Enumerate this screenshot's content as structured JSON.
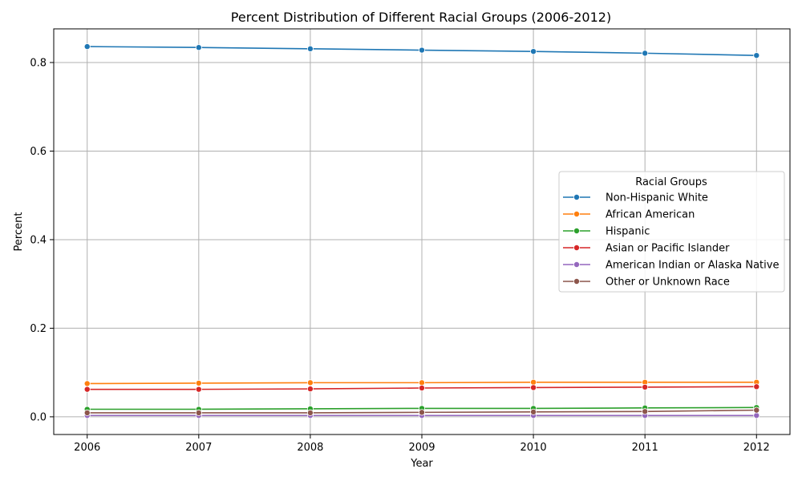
{
  "chart_data": {
    "type": "line",
    "title": "Percent Distribution of Different Racial Groups (2006-2012)",
    "xlabel": "Year",
    "ylabel": "Percent",
    "x": [
      2006,
      2007,
      2008,
      2009,
      2010,
      2011,
      2012
    ],
    "x_ticks": [
      "2006",
      "2007",
      "2008",
      "2009",
      "2010",
      "2011",
      "2012"
    ],
    "xlim": [
      2005.7,
      2012.3
    ],
    "ylim": [
      -0.04,
      0.876
    ],
    "y_ticks": [
      0.0,
      0.2,
      0.4,
      0.6,
      0.8
    ],
    "y_tick_labels": [
      "0.0",
      "0.2",
      "0.4",
      "0.6",
      "0.8"
    ],
    "grid": true,
    "legend": {
      "title": "Racial Groups",
      "placement": "center-right"
    },
    "series": [
      {
        "name": "Non-Hispanic White",
        "color": "#1f77b4",
        "values": [
          0.836,
          0.834,
          0.831,
          0.828,
          0.825,
          0.821,
          0.816
        ]
      },
      {
        "name": "African American",
        "color": "#ff7f0e",
        "values": [
          0.075,
          0.076,
          0.077,
          0.077,
          0.078,
          0.078,
          0.078
        ]
      },
      {
        "name": "Hispanic",
        "color": "#2ca02c",
        "values": [
          0.017,
          0.017,
          0.018,
          0.019,
          0.019,
          0.02,
          0.021
        ]
      },
      {
        "name": "Asian or Pacific Islander",
        "color": "#d62728",
        "values": [
          0.062,
          0.062,
          0.063,
          0.065,
          0.066,
          0.067,
          0.068
        ]
      },
      {
        "name": "American Indian or Alaska Native",
        "color": "#9467bd",
        "values": [
          0.003,
          0.003,
          0.003,
          0.003,
          0.003,
          0.003,
          0.003
        ]
      },
      {
        "name": "Other or Unknown Race",
        "color": "#8c564b",
        "values": [
          0.009,
          0.009,
          0.009,
          0.01,
          0.011,
          0.012,
          0.015
        ]
      }
    ]
  }
}
